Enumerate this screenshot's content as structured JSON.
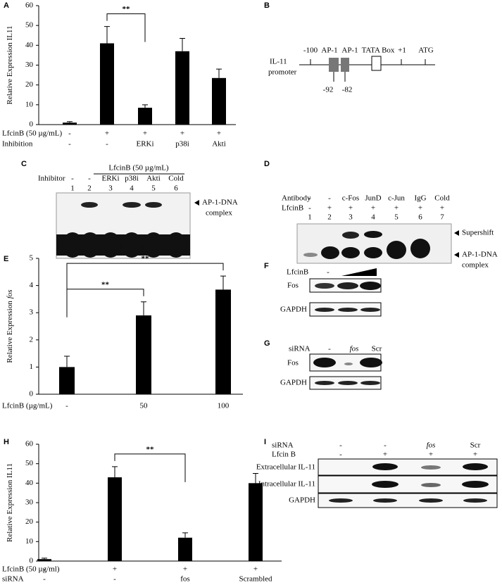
{
  "panel_labels": [
    "A",
    "B",
    "C",
    "D",
    "E",
    "F",
    "G",
    "H",
    "I"
  ],
  "chart_data": [
    {
      "type": "bar",
      "ylabel": "Relative Expression IL11",
      "ylim": [
        0,
        60
      ],
      "yticks": [
        0,
        10,
        20,
        30,
        40,
        50,
        60
      ],
      "color": "#000000",
      "values": [
        1,
        41,
        8.5,
        37,
        23.5
      ],
      "errors": [
        0.5,
        8.5,
        1.5,
        6.5,
        4.5
      ],
      "category_rows": [
        {
          "name": "LfcinB (50 µg/mL)",
          "labels": [
            "-",
            "+",
            "+",
            "+",
            "+"
          ]
        },
        {
          "name": "Inhibition",
          "labels": [
            "-",
            "-",
            "ERKi",
            "p38i",
            "Akti"
          ]
        }
      ],
      "brackets": [
        {
          "label": "**",
          "from": 1,
          "to": 2
        }
      ]
    },
    {
      "type": "bar",
      "ylabel": "Relative Expression",
      "ylabel_italic": "fos",
      "ylim": [
        0,
        5
      ],
      "yticks": [
        0,
        1,
        2,
        3,
        4,
        5
      ],
      "color": "#000000",
      "values": [
        1,
        2.9,
        3.85
      ],
      "errors": [
        0.4,
        0.5,
        0.5
      ],
      "category_rows": [
        {
          "name": "LfcinB (µg/mL)",
          "labels": [
            "-",
            "50",
            "100"
          ]
        }
      ],
      "brackets": [
        {
          "label": "**",
          "from": 0,
          "to": 1
        },
        {
          "label": "**",
          "from": 0,
          "to": 2
        }
      ]
    },
    {
      "type": "bar",
      "ylabel": "Relative Expression IL11",
      "ylim": [
        0,
        60
      ],
      "yticks": [
        0,
        10,
        20,
        30,
        40,
        50,
        60
      ],
      "color": "#000000",
      "values": [
        1,
        43,
        12,
        40
      ],
      "errors": [
        0.5,
        5.5,
        2.5,
        5
      ],
      "category_rows": [
        {
          "name": "LfcinB (50 µg/ml)",
          "labels": [
            "-",
            "+",
            "+",
            "+"
          ]
        },
        {
          "name": "siRNA",
          "labels": [
            "-",
            "-",
            "fos",
            "Scrambled"
          ]
        }
      ],
      "brackets": [
        {
          "label": "**",
          "from": 1,
          "to": 2
        }
      ]
    }
  ],
  "promoter": {
    "name": [
      "IL-11",
      "promoter"
    ],
    "sites": [
      "-100",
      "AP-1",
      "AP-1",
      "TATA Box",
      "+1",
      "ATG"
    ],
    "positions": [
      "-92",
      "-82"
    ]
  },
  "gel_c": {
    "header": "LfcinB (50 µg/mL)",
    "row_label": "Inhibitor",
    "labels": [
      "-",
      "-",
      "ERKi",
      "p38i",
      "Akti",
      "Cold"
    ],
    "lanes": [
      1,
      2,
      3,
      4,
      5,
      6
    ],
    "band": [
      "AP-1-DNA",
      "complex"
    ]
  },
  "gel_d": {
    "row_labels": [
      "Antibody",
      "LfcinB"
    ],
    "antibody": [
      "-",
      "-",
      "c-Fos",
      "JunD",
      "c-Jun",
      "IgG",
      "Cold"
    ],
    "lfcinb": [
      "-",
      "+",
      "+",
      "+",
      "+",
      "+",
      "+"
    ],
    "lanes": [
      1,
      2,
      3,
      4,
      5,
      6,
      7
    ],
    "supershift": "Supershift",
    "band": [
      "AP-1-DNA",
      "complex"
    ]
  },
  "blot_f": {
    "treatment": "LfcinB",
    "labels": [
      "-"
    ],
    "rows": [
      "Fos",
      "GAPDH"
    ]
  },
  "blot_g": {
    "row_label": "siRNA",
    "labels": [
      "-",
      "fos",
      "Scr"
    ],
    "rows": [
      "Fos",
      "GAPDH"
    ]
  },
  "blot_i": {
    "row_labels": [
      "siRNA",
      "Lfcin B"
    ],
    "sirna": [
      "-",
      "-",
      "fos",
      "Scr"
    ],
    "lfcinb": [
      "-",
      "+",
      "+",
      "+"
    ],
    "rows": [
      "Extracellular IL-11",
      "Intracellular IL-11",
      "GAPDH"
    ]
  }
}
